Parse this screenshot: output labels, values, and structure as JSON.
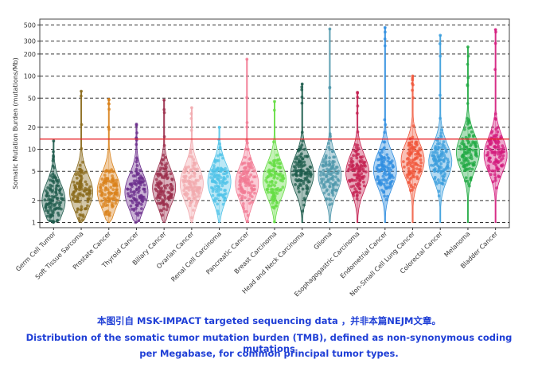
{
  "chart_data": {
    "type": "violin-strip",
    "ylabel": "Somatic Mutation Burden (mutations/Mb)",
    "yscale": "log",
    "ylim": [
      0.85,
      600
    ],
    "yticks": [
      1,
      2,
      5,
      10,
      20,
      50,
      100,
      200,
      300,
      500
    ],
    "ytick_labels": [
      "1",
      "2",
      "5",
      "10",
      "20",
      "50",
      "100",
      "200",
      "300",
      "500"
    ],
    "grid": "horizontal dashed",
    "threshold_line": {
      "value": 13.8,
      "color": "#e8262b"
    },
    "categories": [
      "Germ Cell Tumor",
      "Soft Tissue Sarcoma",
      "Prostate Cancer",
      "Thyroid Cancer",
      "Biliary Cancer",
      "Ovarian Cancer",
      "Renal Cell Carcinoma",
      "Pancreatic Cancer",
      "Breast Carcinoma",
      "Head and Neck Carcinoma",
      "Glioma",
      "Esophagogastric Carcinoma",
      "Endometrial Cancer",
      "Non-Small Cell Lung Cancer",
      "Colorectal Cancer",
      "Melanoma",
      "Bladder Cancer"
    ],
    "series": [
      {
        "median": 2.0,
        "max": 13,
        "color": "#1f5b4c"
      },
      {
        "median": 2.6,
        "max": 62,
        "color": "#8a6a1a"
      },
      {
        "median": 2.7,
        "max": 48,
        "color": "#d9821b"
      },
      {
        "median": 2.6,
        "max": 22,
        "color": "#6b2e8c"
      },
      {
        "median": 3.0,
        "max": 47,
        "color": "#9b2d4b"
      },
      {
        "median": 3.4,
        "max": 37,
        "color": "#f1a9ae"
      },
      {
        "median": 3.6,
        "max": 20,
        "color": "#4fc3e8"
      },
      {
        "median": 3.4,
        "max": 170,
        "color": "#f27a93"
      },
      {
        "median": 3.8,
        "max": 45,
        "color": "#66dd44"
      },
      {
        "median": 4.6,
        "max": 78,
        "color": "#1d5c4c"
      },
      {
        "median": 4.4,
        "max": 440,
        "color": "#4e97ab"
      },
      {
        "median": 4.8,
        "max": 60,
        "color": "#c42152"
      },
      {
        "median": 5.2,
        "max": 460,
        "color": "#2f8de0"
      },
      {
        "median": 7.0,
        "max": 100,
        "color": "#f0563a"
      },
      {
        "median": 6.8,
        "max": 360,
        "color": "#3b9edc"
      },
      {
        "median": 9.0,
        "max": 250,
        "color": "#22aa44"
      },
      {
        "median": 8.4,
        "max": 430,
        "color": "#d31b7c"
      }
    ]
  },
  "caption": {
    "line1": "本图引自 MSK-IMPACT targeted sequencing data ，并非本篇NEJM文章。",
    "line2": "Distribution of the somatic tumor mutation burden (TMB), defined as non-synonymous coding mutations",
    "line3": "per Megabase, for common principal tumor types."
  }
}
